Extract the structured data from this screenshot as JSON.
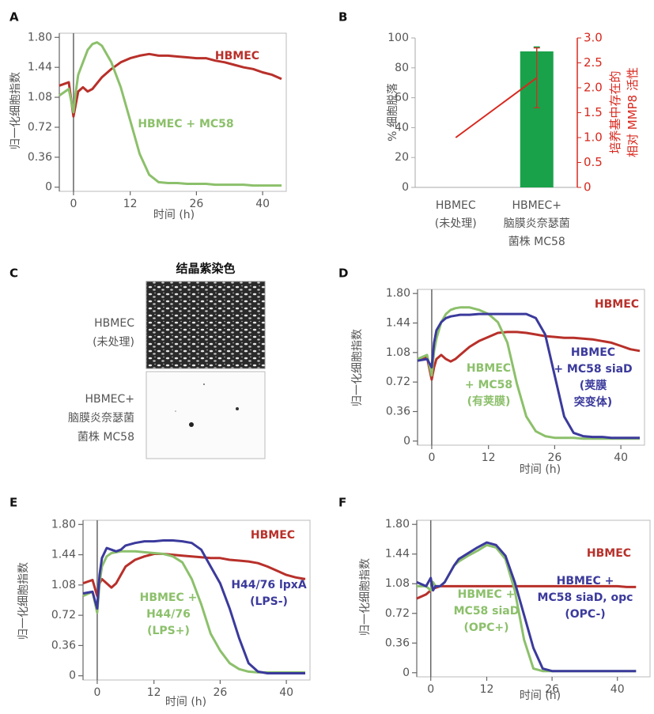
{
  "chart_data": [
    {
      "label": "A",
      "type": "line",
      "xlabel": "时间 (h)",
      "ylabel": "归一化细胞指数",
      "x": [
        -3,
        -1,
        0,
        0.5,
        1,
        2,
        3,
        4,
        5,
        6,
        8,
        10,
        12,
        14,
        16,
        18,
        20,
        22,
        24,
        26,
        28,
        30,
        32,
        34,
        36,
        38,
        40,
        42,
        44
      ],
      "xlim": [
        -3,
        45
      ],
      "xticks": [
        0,
        12,
        26,
        40
      ],
      "ylim": [
        -0.05,
        1.85
      ],
      "yticks": [
        0,
        0.36,
        0.72,
        1.08,
        1.44,
        {
          "value": 1.8,
          "label": "1.80"
        }
      ],
      "series": [
        {
          "name": "HBMEC",
          "color": "#b8302a",
          "values": [
            1.22,
            1.26,
            0.85,
            1.0,
            1.15,
            1.2,
            1.15,
            1.18,
            1.25,
            1.32,
            1.42,
            1.5,
            1.55,
            1.58,
            1.6,
            1.58,
            1.58,
            1.57,
            1.56,
            1.55,
            1.55,
            1.52,
            1.5,
            1.47,
            1.44,
            1.42,
            1.38,
            1.35,
            1.3
          ]
        },
        {
          "name": "HBMEC + MC58",
          "color": "#8cc06b",
          "values": [
            1.1,
            1.18,
            0.9,
            1.15,
            1.35,
            1.5,
            1.65,
            1.72,
            1.74,
            1.7,
            1.5,
            1.2,
            0.8,
            0.4,
            0.15,
            0.06,
            0.05,
            0.05,
            0.04,
            0.04,
            0.04,
            0.03,
            0.03,
            0.03,
            0.03,
            0.02,
            0.02,
            0.02,
            0.02
          ]
        }
      ]
    },
    {
      "label": "B",
      "type": "bar",
      "categories": [
        "HBMEC\n(未处理)",
        "HBMEC+\n脑膜炎奈瑟菌\n菌株 MC58"
      ],
      "ylabel": "% 细胞脱落",
      "y2label": "培养基中存在的\n相对 MMP8 活性",
      "ylim": [
        0,
        100
      ],
      "yticks": [
        0,
        20,
        40,
        60,
        80,
        100
      ],
      "y2lim": [
        0,
        3
      ],
      "y2ticks": [
        0,
        0.5,
        {
          "value": 1,
          "label": "1.0"
        },
        1.5,
        {
          "value": 2,
          "label": "2.0"
        },
        2.5,
        {
          "value": 3,
          "label": "3.0"
        }
      ],
      "series": [
        {
          "type": "bar",
          "color": "#1aa24b",
          "values": [
            0,
            91
          ],
          "errors": [
            null,
            3
          ]
        },
        {
          "type": "line",
          "axis": "y2",
          "color": "#d8281e",
          "values": [
            1.0,
            2.2
          ],
          "errors": [
            null,
            0.6
          ]
        }
      ]
    },
    {
      "label": "D",
      "type": "line",
      "xlabel": "时间 (h)",
      "ylabel": "归一化细胞指数",
      "x": [
        -3,
        -1,
        0,
        0.5,
        1,
        2,
        3,
        4,
        5,
        6,
        8,
        10,
        12,
        14,
        16,
        18,
        20,
        22,
        24,
        26,
        28,
        30,
        32,
        34,
        36,
        38,
        40,
        42,
        44
      ],
      "xlim": [
        -3,
        45
      ],
      "xticks": [
        0,
        12,
        26,
        40
      ],
      "ylim": [
        -0.05,
        1.85
      ],
      "yticks": [
        0,
        0.36,
        0.72,
        1.08,
        1.44,
        {
          "value": 1.8,
          "label": "1.80"
        }
      ],
      "series": [
        {
          "name": "HBMEC",
          "color": "#b8302a",
          "values": [
            1.0,
            1.02,
            0.75,
            0.9,
            1.0,
            1.05,
            1.0,
            0.97,
            1.0,
            1.05,
            1.15,
            1.22,
            1.27,
            1.32,
            1.33,
            1.33,
            1.32,
            1.3,
            1.28,
            1.27,
            1.26,
            1.26,
            1.25,
            1.24,
            1.22,
            1.2,
            1.16,
            1.12,
            1.1
          ]
        },
        {
          "name": "HBMEC\n+ MC58\n(有荚膜)",
          "color": "#8cc06b",
          "values": [
            1.0,
            1.05,
            0.8,
            1.1,
            1.25,
            1.45,
            1.55,
            1.6,
            1.62,
            1.63,
            1.63,
            1.6,
            1.55,
            1.45,
            1.2,
            0.7,
            0.3,
            0.12,
            0.06,
            0.04,
            0.04,
            0.04,
            0.03,
            0.03,
            0.03,
            0.03,
            0.03,
            0.03,
            0.03
          ]
        },
        {
          "name": "HBMEC\n+ MC58 siaD\n(荚膜\n突变体)",
          "color": "#3b3a9c",
          "values": [
            0.98,
            1.0,
            0.9,
            1.2,
            1.35,
            1.45,
            1.5,
            1.52,
            1.53,
            1.54,
            1.54,
            1.55,
            1.55,
            1.55,
            1.55,
            1.55,
            1.55,
            1.5,
            1.3,
            0.8,
            0.3,
            0.1,
            0.06,
            0.05,
            0.05,
            0.04,
            0.04,
            0.04,
            0.04
          ]
        }
      ]
    },
    {
      "label": "E",
      "type": "line",
      "xlabel": "时间 (h)",
      "ylabel": "归一化细胞指数",
      "x": [
        -3,
        -1,
        0,
        0.5,
        1,
        2,
        3,
        4,
        5,
        6,
        8,
        10,
        12,
        14,
        16,
        18,
        20,
        22,
        24,
        26,
        28,
        30,
        32,
        34,
        36,
        38,
        40,
        42,
        44
      ],
      "xlim": [
        -3,
        45
      ],
      "xticks": [
        0,
        12,
        26,
        40
      ],
      "ylim": [
        -0.05,
        1.85
      ],
      "yticks": [
        0,
        0.36,
        0.72,
        1.08,
        1.44,
        {
          "value": 1.8,
          "label": "1.80"
        }
      ],
      "series": [
        {
          "name": "HBMEC",
          "color": "#b8302a",
          "values": [
            1.1,
            1.14,
            0.95,
            1.1,
            1.15,
            1.1,
            1.05,
            1.1,
            1.2,
            1.3,
            1.38,
            1.42,
            1.45,
            1.45,
            1.44,
            1.43,
            1.42,
            1.41,
            1.4,
            1.4,
            1.38,
            1.37,
            1.36,
            1.34,
            1.3,
            1.25,
            1.2,
            1.17,
            1.15
          ]
        },
        {
          "name": "HBMEC +\nH44/76\n(LPS+)",
          "color": "#8cc06b",
          "values": [
            0.95,
            1.0,
            0.75,
            1.1,
            1.3,
            1.42,
            1.46,
            1.47,
            1.48,
            1.48,
            1.48,
            1.47,
            1.46,
            1.45,
            1.42,
            1.35,
            1.15,
            0.85,
            0.5,
            0.3,
            0.15,
            0.08,
            0.05,
            0.04,
            0.04,
            0.04,
            0.04,
            0.04,
            0.04
          ]
        },
        {
          "name": "H44/76 lpxA\n(LPS-)",
          "color": "#3b3a9c",
          "values": [
            0.98,
            1.0,
            0.8,
            1.2,
            1.4,
            1.52,
            1.5,
            1.48,
            1.5,
            1.55,
            1.58,
            1.6,
            1.6,
            1.61,
            1.61,
            1.6,
            1.58,
            1.5,
            1.3,
            1.1,
            0.8,
            0.45,
            0.15,
            0.05,
            0.03,
            0.03,
            0.03,
            0.03,
            0.03
          ]
        }
      ]
    },
    {
      "label": "F",
      "type": "line",
      "xlabel": "时间 (h)",
      "ylabel": "归一化细胞指数",
      "x": [
        -3,
        -1,
        0,
        0.5,
        1,
        2,
        3,
        4,
        5,
        6,
        8,
        10,
        12,
        14,
        16,
        18,
        20,
        22,
        24,
        26,
        28,
        30,
        32,
        34,
        36,
        38,
        40,
        42,
        44
      ],
      "xlim": [
        -3,
        47
      ],
      "xticks": [
        0,
        12,
        26,
        40
      ],
      "ylim": [
        -0.05,
        1.85
      ],
      "yticks": [
        0,
        0.36,
        0.72,
        1.08,
        1.44,
        {
          "value": 1.8,
          "label": "1.80"
        }
      ],
      "series": [
        {
          "name": "HBMEC",
          "color": "#b8302a",
          "values": [
            0.9,
            0.95,
            1.0,
            1.02,
            1.03,
            1.05,
            1.05,
            1.05,
            1.05,
            1.05,
            1.05,
            1.05,
            1.05,
            1.05,
            1.05,
            1.05,
            1.05,
            1.05,
            1.05,
            1.05,
            1.05,
            1.05,
            1.05,
            1.05,
            1.05,
            1.05,
            1.05,
            1.04,
            1.04
          ]
        },
        {
          "name": "HBMEC +\nMC58 siaD\n(OPC+)",
          "color": "#8cc06b",
          "values": [
            1.05,
            1.05,
            1.0,
            1.1,
            1.05,
            1.05,
            1.1,
            1.2,
            1.3,
            1.35,
            1.42,
            1.48,
            1.55,
            1.52,
            1.38,
            1.0,
            0.4,
            0.05,
            0.02,
            0.02,
            0.02,
            0.02,
            0.02,
            0.02,
            0.02,
            0.02,
            0.02,
            0.02,
            0.02
          ]
        },
        {
          "name": "HBMEC +\nMC58 siaD, opc\n(OPC-)",
          "color": "#3b3a9c",
          "values": [
            1.1,
            1.05,
            1.15,
            1.0,
            1.05,
            1.05,
            1.1,
            1.2,
            1.3,
            1.38,
            1.45,
            1.52,
            1.58,
            1.55,
            1.42,
            1.1,
            0.7,
            0.3,
            0.05,
            0.02,
            0.02,
            0.02,
            0.02,
            0.02,
            0.02,
            0.02,
            0.02,
            0.02,
            0.02
          ]
        }
      ]
    }
  ],
  "image_panel": {
    "label": "C",
    "title": "结晶紫染色",
    "rows": [
      "HBMEC\n(未处理)",
      "HBMEC+\n脑膜炎奈瑟菌\n菌株 MC58"
    ]
  }
}
